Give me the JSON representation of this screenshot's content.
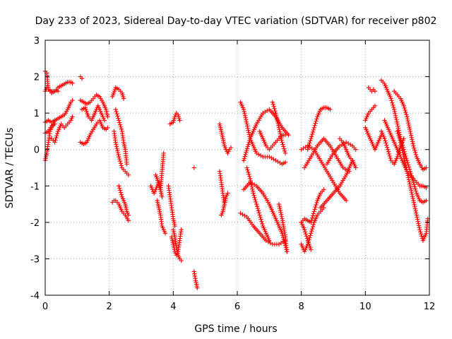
{
  "chart_data": {
    "type": "scatter",
    "title": "Day 233 of 2023, Sidereal Day-to-day VTEC variation (SDTVAR) for receiver p802",
    "xlabel": "GPS time / hours",
    "ylabel": "SDTVAR / TECUs",
    "xlim": [
      0,
      12
    ],
    "ylim": [
      -4,
      3
    ],
    "xticks": [
      "0",
      "2",
      "4",
      "6",
      "8",
      "10",
      "12"
    ],
    "yticks": [
      "-4",
      "-3",
      "-2",
      "-1",
      "0",
      "1",
      "2",
      "3"
    ],
    "grid": true,
    "marker": "plus",
    "color": "#ff0000",
    "arcs": [
      {
        "x": [
          0.0,
          0.05,
          0.1,
          0.2,
          0.3,
          0.4,
          0.5,
          0.6,
          0.7,
          0.8,
          0.85
        ],
        "y": [
          1.6,
          1.7,
          1.65,
          1.55,
          1.6,
          1.7,
          1.75,
          1.8,
          1.85,
          1.85,
          1.82
        ]
      },
      {
        "x": [
          0.0,
          0.05,
          0.1,
          0.2,
          0.3,
          0.35,
          0.4
        ],
        "y": [
          2.15,
          2.1,
          1.65,
          1.6,
          1.6,
          1.62,
          1.6
        ]
      },
      {
        "x": [
          0.0,
          0.1,
          0.2,
          0.3,
          0.4,
          0.5,
          0.6,
          0.7,
          0.8,
          0.85
        ],
        "y": [
          0.75,
          0.8,
          0.75,
          0.8,
          0.85,
          0.9,
          0.95,
          1.1,
          1.3,
          1.35
        ]
      },
      {
        "x": [
          0.0,
          0.05,
          0.1,
          0.15,
          0.2,
          0.25,
          0.3
        ],
        "y": [
          -0.3,
          -0.1,
          0.2,
          0.5,
          0.6,
          0.7,
          0.8
        ]
      },
      {
        "x": [
          0.2,
          0.3,
          0.4,
          0.5,
          0.6,
          0.7,
          0.8,
          0.85
        ],
        "y": [
          0.3,
          0.2,
          0.5,
          0.7,
          0.6,
          0.7,
          0.8,
          0.9
        ]
      },
      {
        "x": [
          0.0,
          0.1,
          0.2,
          0.3
        ],
        "y": [
          0.45,
          0.5,
          0.65,
          0.7
        ]
      },
      {
        "x": [
          1.1,
          1.2,
          1.3,
          1.4,
          1.5,
          1.6,
          1.7,
          1.8,
          1.9,
          1.95
        ],
        "y": [
          0.2,
          0.15,
          0.2,
          0.4,
          0.55,
          0.7,
          0.8,
          0.6,
          0.55,
          0.6
        ]
      },
      {
        "x": [
          1.1,
          1.2,
          1.3,
          1.4,
          1.5,
          1.6,
          1.7,
          1.8,
          1.9,
          1.95
        ],
        "y": [
          1.35,
          1.3,
          1.25,
          1.3,
          1.4,
          1.5,
          1.45,
          1.3,
          1.1,
          0.9
        ]
      },
      {
        "x": [
          1.15,
          1.25,
          1.35,
          1.45,
          1.55,
          1.65,
          1.75,
          1.85
        ],
        "y": [
          1.1,
          1.15,
          0.9,
          0.8,
          1.0,
          1.2,
          1.0,
          0.8
        ]
      },
      {
        "x": [
          1.1,
          1.15
        ],
        "y": [
          2.0,
          1.95
        ]
      },
      {
        "x": [
          2.1,
          2.2,
          2.3,
          2.4,
          2.45
        ],
        "y": [
          1.45,
          1.7,
          1.65,
          1.55,
          1.4
        ]
      },
      {
        "x": [
          2.15,
          2.2,
          2.3,
          2.4,
          2.5,
          2.55,
          2.6
        ],
        "y": [
          0.5,
          0.2,
          -0.2,
          -0.5,
          -0.6,
          -0.65,
          -0.7
        ]
      },
      {
        "x": [
          2.2,
          2.3,
          2.4,
          2.45,
          2.5,
          2.55
        ],
        "y": [
          1.1,
          0.8,
          0.5,
          0.2,
          0.0,
          -0.4
        ]
      },
      {
        "x": [
          2.1,
          2.15,
          2.2,
          2.3,
          2.4,
          2.5,
          2.6
        ],
        "y": [
          -1.45,
          -1.4,
          -1.4,
          -1.5,
          -1.7,
          -1.8,
          -1.95
        ]
      },
      {
        "x": [
          2.3,
          2.4,
          2.5,
          2.55,
          2.6
        ],
        "y": [
          -1.0,
          -1.3,
          -1.5,
          -1.7,
          -1.8
        ]
      },
      {
        "x": [
          3.3,
          3.35,
          3.4,
          3.45,
          3.5,
          3.55,
          3.6,
          3.65
        ],
        "y": [
          -1.0,
          -1.1,
          -1.2,
          -1.1,
          -1.0,
          -0.9,
          -1.1,
          -1.3
        ]
      },
      {
        "x": [
          3.45,
          3.5,
          3.55,
          3.6,
          3.65,
          3.7
        ],
        "y": [
          -0.7,
          -0.8,
          -1.0,
          -1.1,
          -0.6,
          -0.1
        ]
      },
      {
        "x": [
          3.5,
          3.55,
          3.6,
          3.65,
          3.7,
          3.75
        ],
        "y": [
          -1.4,
          -1.6,
          -1.8,
          -2.1,
          -2.2,
          -2.3
        ]
      },
      {
        "x": [
          3.9,
          4.0,
          4.05,
          4.1,
          4.15,
          4.2
        ],
        "y": [
          0.7,
          0.75,
          0.9,
          1.0,
          0.95,
          0.8
        ]
      },
      {
        "x": [
          3.95,
          4.0,
          4.05,
          4.1,
          4.15,
          4.2,
          4.25
        ],
        "y": [
          -2.4,
          -2.6,
          -2.8,
          -2.9,
          -2.8,
          -2.5,
          -2.2
        ]
      },
      {
        "x": [
          4.0,
          4.05,
          4.1,
          4.15,
          4.2,
          4.25
        ],
        "y": [
          -2.2,
          -2.4,
          -2.7,
          -2.9,
          -3.0,
          -3.05
        ]
      },
      {
        "x": [
          3.85,
          3.9,
          3.95,
          4.0,
          4.05
        ],
        "y": [
          -1.0,
          -1.3,
          -1.6,
          -1.9,
          -2.1
        ]
      },
      {
        "x": [
          4.65,
          4.7,
          4.75
        ],
        "y": [
          -3.35,
          -3.6,
          -3.8
        ]
      },
      {
        "x": [
          4.65
        ],
        "y": [
          -0.5
        ]
      },
      {
        "x": [
          5.45,
          5.5,
          5.55,
          5.6,
          5.65,
          5.7,
          5.75,
          5.8
        ],
        "y": [
          0.7,
          0.5,
          0.3,
          0.1,
          0.0,
          -0.1,
          0.0,
          0.05
        ]
      },
      {
        "x": [
          5.5,
          5.55,
          5.6,
          5.65,
          5.7
        ],
        "y": [
          -1.8,
          -1.7,
          -1.5,
          -1.3,
          -1.2
        ]
      },
      {
        "x": [
          5.45,
          5.5,
          5.55,
          5.6
        ],
        "y": [
          -0.6,
          -0.9,
          -1.2,
          -1.5
        ]
      },
      {
        "x": [
          6.1,
          6.3,
          6.5,
          6.7,
          6.9,
          7.1,
          7.3,
          7.5
        ],
        "y": [
          -1.75,
          -1.85,
          -2.1,
          -2.3,
          -2.5,
          -2.6,
          -2.6,
          -2.5
        ]
      },
      {
        "x": [
          6.1,
          6.2,
          6.3,
          6.4,
          6.5,
          6.6,
          6.8,
          7.0,
          7.2,
          7.4,
          7.5
        ],
        "y": [
          1.3,
          1.1,
          0.7,
          0.3,
          0.1,
          -0.1,
          -0.2,
          -0.2,
          -0.3,
          -0.4,
          -0.35
        ]
      },
      {
        "x": [
          6.2,
          6.4,
          6.6,
          6.8,
          7.0,
          7.2,
          7.4,
          7.55
        ],
        "y": [
          -1.1,
          -0.9,
          -1.0,
          -1.2,
          -1.5,
          -1.9,
          -2.3,
          -2.8
        ]
      },
      {
        "x": [
          6.3,
          6.4,
          6.5,
          6.6,
          6.7,
          6.8,
          6.9,
          7.0
        ],
        "y": [
          -0.5,
          -0.8,
          -1.2,
          -1.5,
          -1.8,
          -2.1,
          -2.3,
          -2.5
        ]
      },
      {
        "x": [
          6.2,
          6.4,
          6.6,
          6.8,
          7.0,
          7.2,
          7.4,
          7.6
        ],
        "y": [
          -0.3,
          0.3,
          0.7,
          1.0,
          1.1,
          0.9,
          0.6,
          0.4
        ]
      },
      {
        "x": [
          6.7,
          6.8,
          6.9,
          7.0,
          7.1,
          7.2,
          7.3,
          7.4,
          7.5
        ],
        "y": [
          0.5,
          0.3,
          0.1,
          0.0,
          0.1,
          0.2,
          0.3,
          0.4,
          0.4
        ]
      },
      {
        "x": [
          7.1,
          7.2,
          7.3,
          7.4,
          7.5
        ],
        "y": [
          1.3,
          1.0,
          0.6,
          0.2,
          -0.1
        ]
      },
      {
        "x": [
          7.3,
          7.4,
          7.5,
          7.55
        ],
        "y": [
          -1.5,
          -1.9,
          -2.4,
          -2.8
        ]
      },
      {
        "x": [
          8.0,
          8.1,
          8.2,
          8.3
        ],
        "y": [
          -2.0,
          -2.2,
          -2.5,
          -2.75
        ]
      },
      {
        "x": [
          8.0,
          8.1,
          8.2,
          8.3,
          8.4,
          8.5,
          8.6,
          8.7
        ],
        "y": [
          -2.6,
          -2.8,
          -2.6,
          -2.3,
          -2.0,
          -1.8,
          -1.7,
          -1.6
        ]
      },
      {
        "x": [
          8.0,
          8.1,
          8.2,
          8.3,
          8.4,
          8.5,
          8.6,
          8.7
        ],
        "y": [
          -2.0,
          -1.9,
          -1.95,
          -2.0,
          -1.7,
          -1.4,
          -1.2,
          -1.1
        ]
      },
      {
        "x": [
          8.2,
          8.3,
          8.4,
          8.5,
          8.6,
          8.7,
          8.8,
          8.9
        ],
        "y": [
          0.0,
          0.3,
          0.6,
          0.9,
          1.1,
          1.15,
          1.15,
          1.1
        ]
      },
      {
        "x": [
          8.0,
          8.2,
          8.4,
          8.6,
          8.8,
          9.0,
          9.2,
          9.4
        ],
        "y": [
          0.0,
          0.1,
          0.0,
          -0.3,
          -0.6,
          -0.9,
          -1.2,
          -1.4
        ]
      },
      {
        "x": [
          8.1,
          8.3,
          8.5,
          8.7,
          8.9,
          9.1,
          9.3,
          9.5
        ],
        "y": [
          -0.5,
          -0.2,
          0.1,
          0.3,
          0.1,
          -0.2,
          -0.5,
          -0.6
        ]
      },
      {
        "x": [
          8.6,
          8.8,
          9.0,
          9.2,
          9.4,
          9.6
        ],
        "y": [
          -1.6,
          -1.4,
          -1.2,
          -1.0,
          -0.7,
          -0.3
        ]
      },
      {
        "x": [
          8.8,
          9.0,
          9.2,
          9.4,
          9.6,
          9.7
        ],
        "y": [
          -0.4,
          -0.1,
          0.1,
          0.2,
          0.1,
          0.0
        ]
      },
      {
        "x": [
          9.2,
          9.3,
          9.4,
          9.5,
          9.6,
          9.7
        ],
        "y": [
          0.3,
          0.2,
          0.0,
          -0.2,
          -0.3,
          -0.5
        ]
      },
      {
        "x": [
          10.1,
          10.15,
          10.2,
          10.25,
          10.3
        ],
        "y": [
          1.7,
          1.65,
          1.6,
          1.65,
          1.6
        ]
      },
      {
        "x": [
          10.0,
          10.1,
          10.2,
          10.3,
          10.4,
          10.5
        ],
        "y": [
          0.6,
          0.4,
          0.2,
          0.0,
          0.2,
          0.4
        ]
      },
      {
        "x": [
          10.0,
          10.1,
          10.2,
          10.3
        ],
        "y": [
          0.8,
          1.0,
          1.1,
          1.2
        ]
      },
      {
        "x": [
          10.5,
          10.6,
          10.7,
          10.8,
          10.9,
          11.0,
          11.1,
          11.2,
          11.3,
          11.4,
          11.5,
          11.6,
          11.7,
          11.8,
          11.9
        ],
        "y": [
          1.9,
          1.8,
          1.6,
          1.4,
          1.1,
          0.7,
          0.3,
          0.0,
          -0.3,
          -0.6,
          -0.9,
          -1.2,
          -1.4,
          -1.45,
          -1.4
        ]
      },
      {
        "x": [
          10.9,
          11.0,
          11.1,
          11.2,
          11.3,
          11.4,
          11.5,
          11.6,
          11.7,
          11.8,
          11.9
        ],
        "y": [
          1.6,
          1.5,
          1.4,
          1.2,
          0.9,
          0.5,
          0.1,
          -0.2,
          -0.4,
          -0.55,
          -0.5
        ]
      },
      {
        "x": [
          10.5,
          10.6,
          10.7,
          10.8,
          10.9,
          11.0,
          11.1,
          11.2
        ],
        "y": [
          0.5,
          0.3,
          0.0,
          -0.3,
          -0.4,
          -0.2,
          0.1,
          0.3
        ]
      },
      {
        "x": [
          10.6,
          10.7,
          10.8,
          10.9,
          11.0,
          11.1,
          11.2,
          11.3,
          11.4,
          11.5,
          11.6,
          11.7,
          11.8,
          11.9
        ],
        "y": [
          0.8,
          0.6,
          0.4,
          0.2,
          0.0,
          -0.2,
          -0.4,
          -0.6,
          -0.7,
          -0.8,
          -0.9,
          -1.0,
          -1.0,
          -1.05
        ]
      },
      {
        "x": [
          11.0,
          11.1,
          11.2,
          11.3,
          11.4,
          11.5,
          11.6,
          11.7,
          11.8,
          11.9,
          11.95
        ],
        "y": [
          0.5,
          0.2,
          -0.2,
          -0.6,
          -1.0,
          -1.4,
          -1.8,
          -2.2,
          -2.5,
          -2.3,
          -1.9
        ]
      }
    ]
  }
}
